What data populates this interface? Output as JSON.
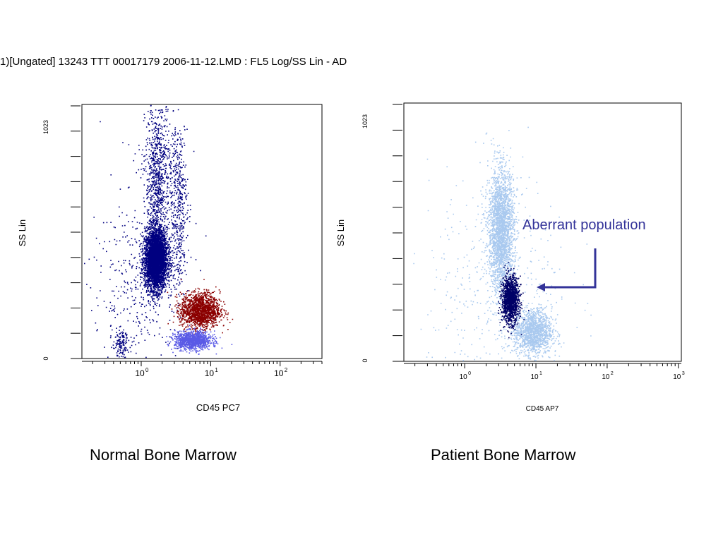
{
  "header_text": "1)[Ungated] 13243 TTT 00017179 2006-11-12.LMD : FL5 Log/SS Lin - AD",
  "colors": {
    "lymphocytes_normal": "#000080",
    "myeloid_normal": "#8b0000",
    "monocytes_normal": "#5a5ae6",
    "patient_background": "#a9c9ef",
    "aberrant": "#000066",
    "annotation": "#333399"
  },
  "chart_data": [
    {
      "type": "scatter",
      "panel": "left",
      "xlabel": "CD45 PC7",
      "ylabel": "SS Lin",
      "x_scale": "log",
      "xlim": [
        0.14,
        400
      ],
      "ylim": [
        0,
        1023
      ],
      "y_tick_labels": [
        "0",
        "1023"
      ],
      "x_tick_labels": [
        "10",
        "10",
        "10"
      ],
      "x_tick_exponents": [
        "0",
        "1",
        "2"
      ],
      "grid": false,
      "caption": "Normal Bone Marrow",
      "clusters": [
        {
          "color": "lymphocytes_normal",
          "count": 4200,
          "cx": 1.6,
          "cy": 400,
          "sx_log": 0.08,
          "sy": 60
        },
        {
          "color": "lymphocytes_normal",
          "count": 900,
          "cx": 1.7,
          "cy": 720,
          "sx_log": 0.09,
          "sy": 160
        },
        {
          "color": "lymphocytes_normal",
          "count": 500,
          "cx": 3.3,
          "cy": 620,
          "sx_log": 0.07,
          "sy": 180
        },
        {
          "color": "lymphocytes_normal",
          "count": 400,
          "cx": 0.9,
          "cy": 300,
          "sx_log": 0.35,
          "sy": 220
        },
        {
          "color": "lymphocytes_normal",
          "count": 120,
          "cx": 0.5,
          "cy": 60,
          "sx_log": 0.06,
          "sy": 25
        },
        {
          "color": "myeloid_normal",
          "count": 1600,
          "cx": 7.0,
          "cy": 195,
          "sx_log": 0.14,
          "sy": 35
        },
        {
          "color": "monocytes_normal",
          "count": 1100,
          "cx": 5.5,
          "cy": 75,
          "sx_log": 0.13,
          "sy": 18
        }
      ]
    },
    {
      "type": "scatter",
      "panel": "right",
      "xlabel": "CD45 AP7",
      "ylabel": "SS Lin",
      "x_scale": "log",
      "xlim": [
        0.14,
        1100
      ],
      "ylim": [
        0,
        1023
      ],
      "y_tick_labels": [
        "0",
        "1023"
      ],
      "x_tick_labels": [
        "10",
        "10",
        "10",
        "10"
      ],
      "x_tick_exponents": [
        "0",
        "1",
        "2",
        "3"
      ],
      "grid": false,
      "caption": "Patient Bone Marrow",
      "annotation": {
        "text": "Aberrant population"
      },
      "clusters": [
        {
          "color": "patient_background",
          "count": 2600,
          "cx": 3.2,
          "cy": 520,
          "sx_log": 0.09,
          "sy": 120
        },
        {
          "color": "patient_background",
          "count": 1400,
          "cx": 9.0,
          "cy": 120,
          "sx_log": 0.13,
          "sy": 45
        },
        {
          "color": "patient_background",
          "count": 500,
          "cx": 3.0,
          "cy": 250,
          "sx_log": 0.5,
          "sy": 250
        },
        {
          "color": "aberrant",
          "count": 1400,
          "cx": 4.3,
          "cy": 245,
          "sx_log": 0.06,
          "sy": 45
        }
      ]
    }
  ]
}
